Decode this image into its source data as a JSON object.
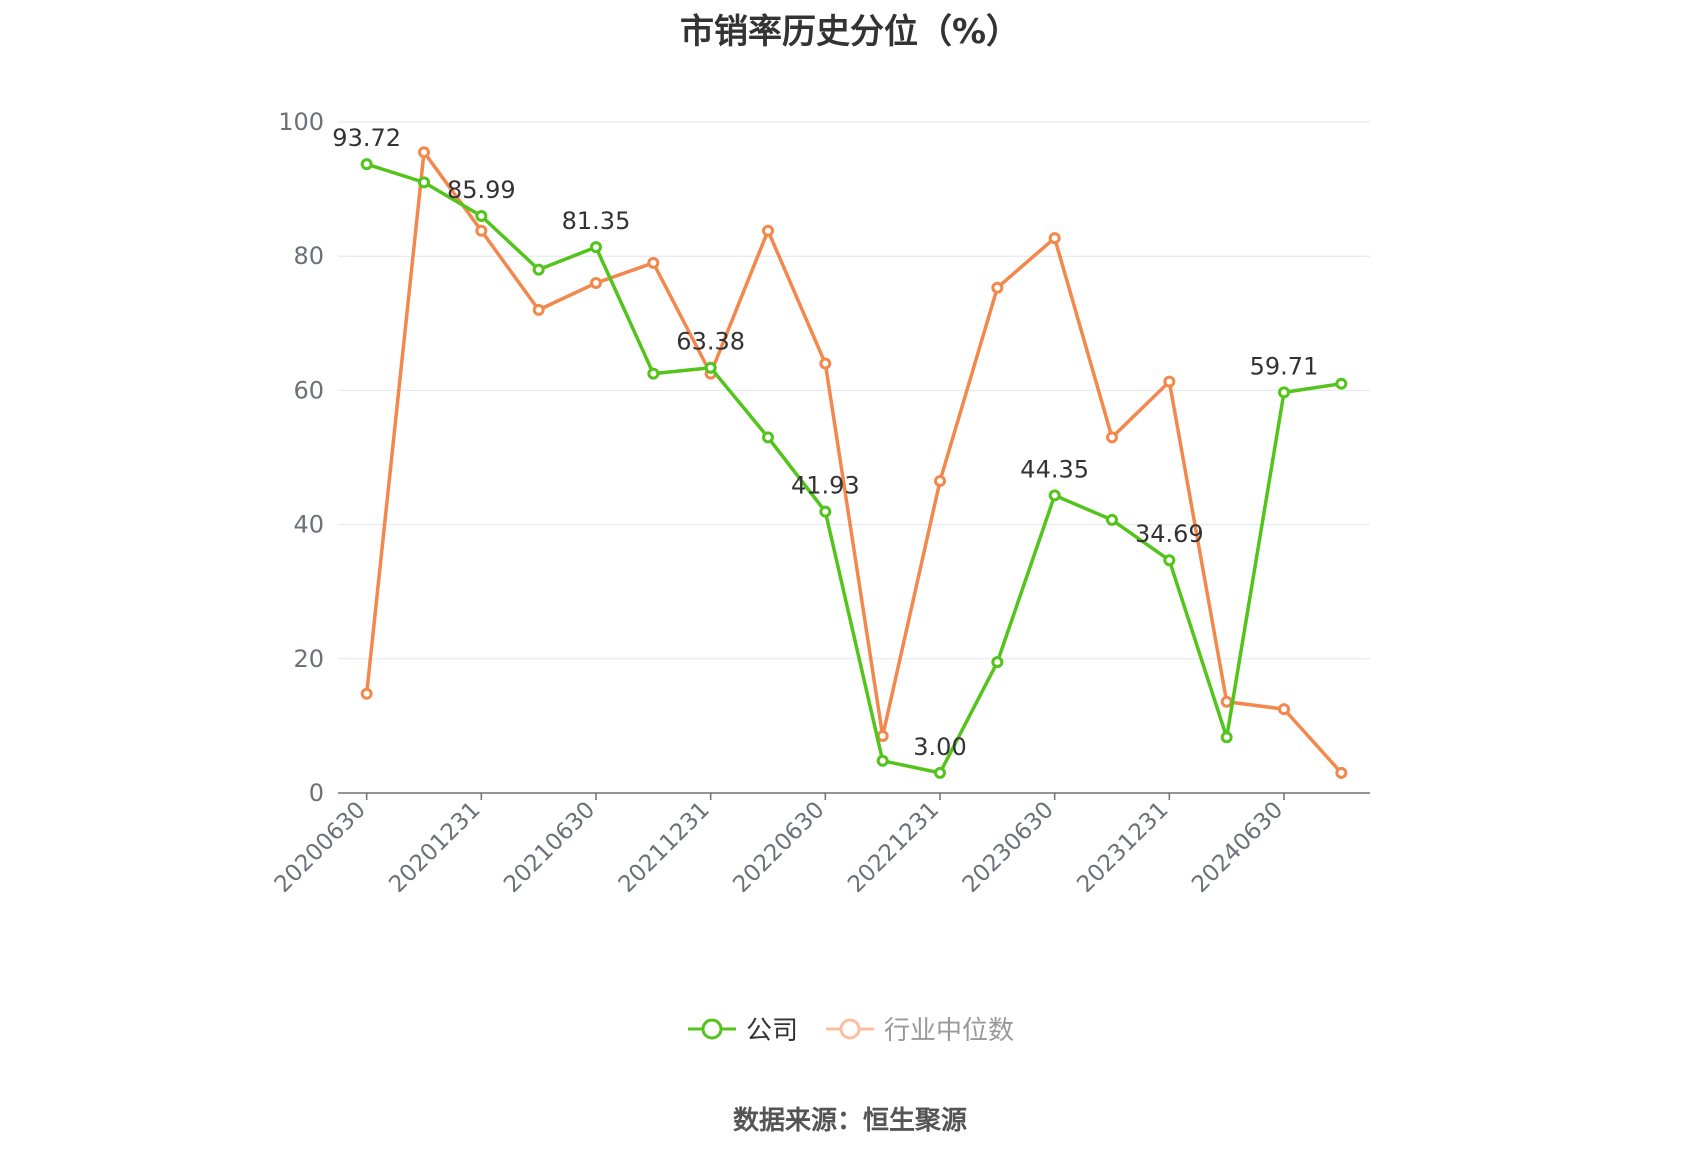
{
  "title": "市销率历史分位（%）",
  "source": "数据来源：恒生聚源",
  "chart_data": {
    "type": "line",
    "x": [
      "20200630",
      "20200930",
      "20201231",
      "20210331",
      "20210630",
      "20210930",
      "20211231",
      "20220331",
      "20220630",
      "20220930",
      "20221231",
      "20230331",
      "20230630",
      "20230930",
      "20231231",
      "20240331",
      "20240630",
      "20240930"
    ],
    "xticks": [
      "20200630",
      "20201231",
      "20210630",
      "20211231",
      "20220630",
      "20221231",
      "20230630",
      "20231231",
      "20240630"
    ],
    "ylim": [
      0,
      100
    ],
    "yticks": [
      0,
      20,
      40,
      60,
      80,
      100
    ],
    "grid": true,
    "legend_position": "bottom",
    "series": [
      {
        "name": "公司",
        "color": "#52c41a",
        "values": [
          93.72,
          91.0,
          85.99,
          78.0,
          81.35,
          62.5,
          63.38,
          53.0,
          41.93,
          4.8,
          3.0,
          19.5,
          44.35,
          40.7,
          34.69,
          8.3,
          59.71,
          61.0
        ],
        "labels": {
          "0": "93.72",
          "2": "85.99",
          "4": "81.35",
          "6": "63.38",
          "8": "41.93",
          "10": "3.00",
          "12": "44.35",
          "14": "34.69",
          "16": "59.71"
        }
      },
      {
        "name": "行业中位数",
        "color": "#f4874b",
        "values": [
          14.8,
          95.5,
          83.8,
          72.0,
          76.0,
          79.0,
          62.5,
          83.8,
          64.0,
          8.5,
          46.5,
          75.3,
          82.7,
          53.0,
          61.3,
          13.6,
          12.5,
          3.0
        ]
      }
    ]
  }
}
